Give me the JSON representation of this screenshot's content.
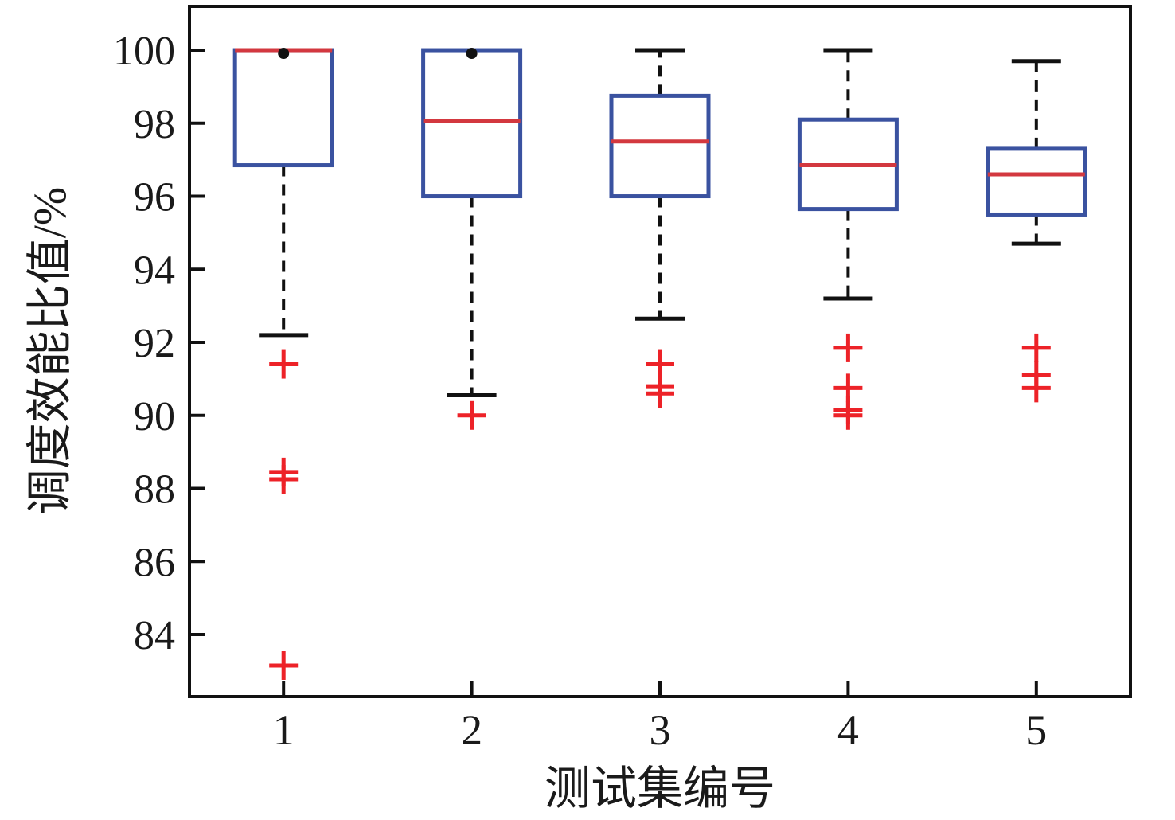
{
  "chart_data": {
    "type": "boxplot",
    "title": "",
    "xlabel": "测试集编号",
    "ylabel": "调度效能比值/%",
    "categories": [
      "1",
      "2",
      "3",
      "4",
      "5"
    ],
    "yticks": [
      100,
      98,
      96,
      94,
      92,
      90,
      88,
      86,
      84
    ],
    "ylim": [
      82.3,
      101.2
    ],
    "grid": false,
    "legend": null,
    "boxes": [
      {
        "category": "1",
        "q1": 96.85,
        "median": 100.0,
        "q3": 100.0,
        "whisker_low": 92.2,
        "whisker_high": 100.0,
        "outliers": [
          91.4,
          88.45,
          88.25,
          83.15
        ]
      },
      {
        "category": "2",
        "q1": 96.0,
        "median": 98.05,
        "q3": 100.0,
        "whisker_low": 90.55,
        "whisker_high": 100.0,
        "outliers": [
          90.0
        ]
      },
      {
        "category": "3",
        "q1": 96.0,
        "median": 97.5,
        "q3": 98.75,
        "whisker_low": 92.65,
        "whisker_high": 100.0,
        "outliers": [
          91.4,
          90.8,
          90.6
        ]
      },
      {
        "category": "4",
        "q1": 95.65,
        "median": 96.85,
        "q3": 98.1,
        "whisker_low": 93.2,
        "whisker_high": 100.0,
        "outliers": [
          91.85,
          90.75,
          90.15,
          90.0
        ]
      },
      {
        "category": "5",
        "q1": 95.5,
        "median": 96.6,
        "q3": 97.3,
        "whisker_low": 94.7,
        "whisker_high": 99.7,
        "outliers": [
          91.85,
          91.1,
          90.75
        ]
      }
    ],
    "colors": {
      "box_edge": "#3A52A0",
      "median": "#D3383F",
      "whisker": "#111111",
      "cap": "#111111",
      "outlier": "#ED2228",
      "frame": "#111111",
      "text": "#1a1a1a"
    }
  }
}
